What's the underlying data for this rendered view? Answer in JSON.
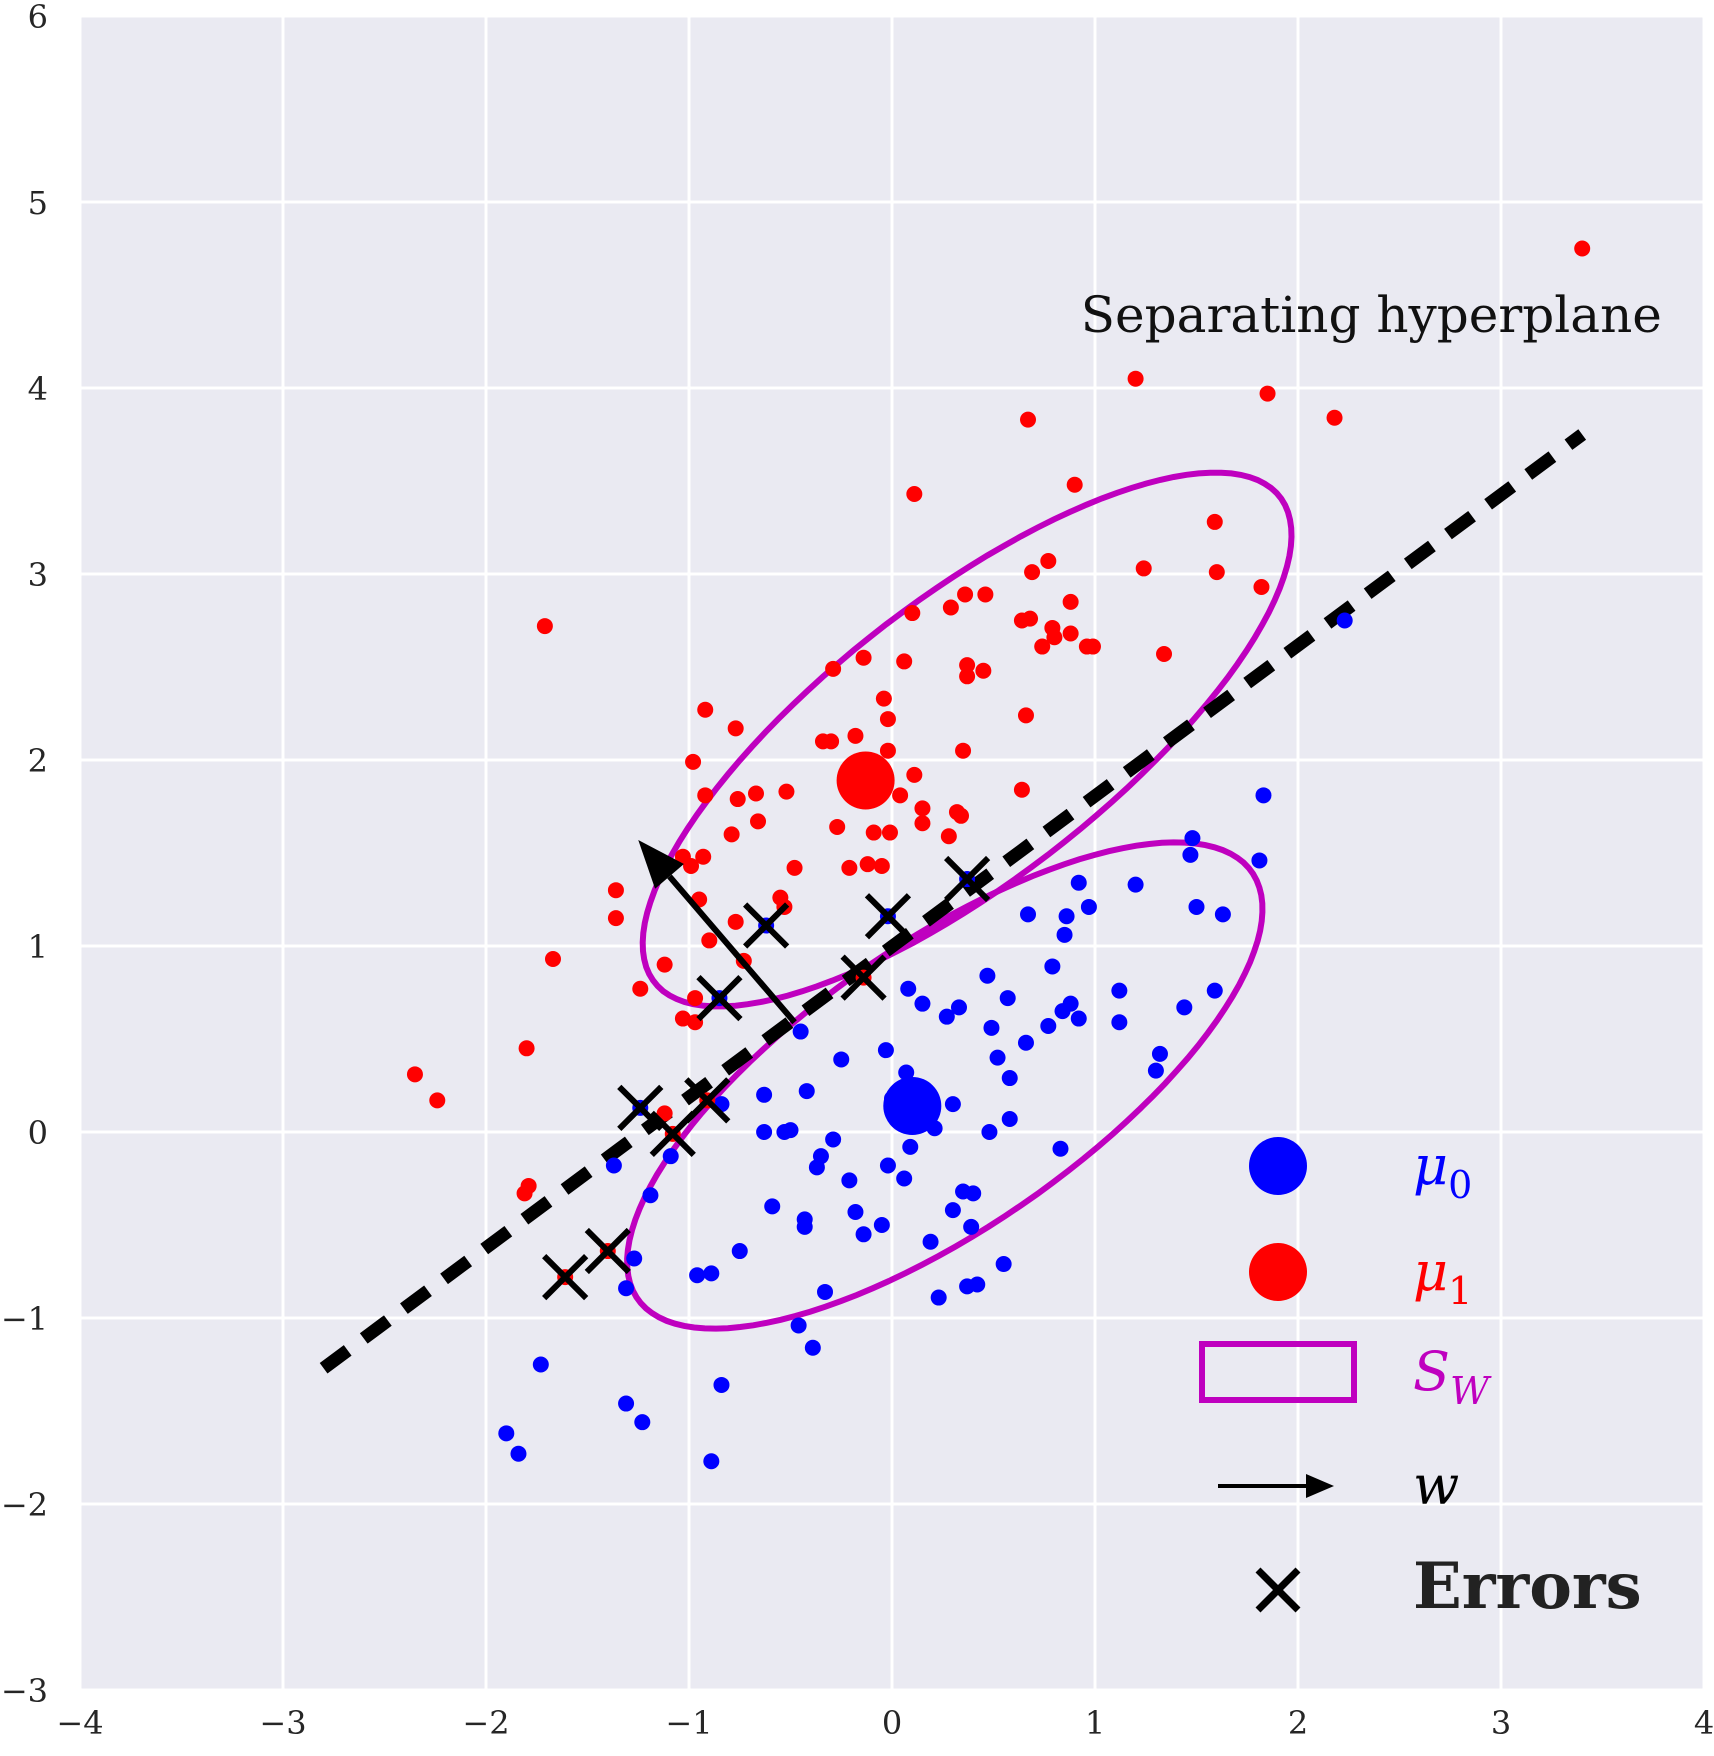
{
  "chart_data": {
    "type": "scatter",
    "title": "",
    "xlabel": "",
    "ylabel": "",
    "xlim": [
      -4,
      4
    ],
    "ylim": [
      -3,
      6
    ],
    "grid": true,
    "xticks": [
      -4,
      -3,
      -2,
      -1,
      0,
      1,
      2,
      3,
      4
    ],
    "yticks": [
      -3,
      -2,
      -1,
      0,
      1,
      2,
      3,
      4,
      5,
      6
    ],
    "xtick_labels": [
      "−4",
      "−3",
      "−2",
      "−1",
      "0",
      "1",
      "2",
      "3",
      "4"
    ],
    "ytick_labels": [
      "−3",
      "−2",
      "−1",
      "0",
      "1",
      "2",
      "3",
      "4",
      "5",
      "6"
    ],
    "colors": {
      "class0": "#0000ff",
      "class1": "#ff0000",
      "sw": "#bf00bf",
      "line": "#000000",
      "bg": "#eaeaf2"
    },
    "series": [
      {
        "name": "class 0",
        "color": "#0000ff",
        "points": [
          [
            2.23,
            2.75
          ],
          [
            1.83,
            1.81
          ],
          [
            1.48,
            1.58
          ],
          [
            1.47,
            1.49
          ],
          [
            1.81,
            1.46
          ],
          [
            1.2,
            1.33
          ],
          [
            0.92,
            1.34
          ],
          [
            0.97,
            1.21
          ],
          [
            1.5,
            1.21
          ],
          [
            1.63,
            1.17
          ],
          [
            0.67,
            1.17
          ],
          [
            0.86,
            1.16
          ],
          [
            0.85,
            1.06
          ],
          [
            0.79,
            0.89
          ],
          [
            0.47,
            0.84
          ],
          [
            1.12,
            0.76
          ],
          [
            1.59,
            0.76
          ],
          [
            0.08,
            0.77
          ],
          [
            0.57,
            0.72
          ],
          [
            0.88,
            0.69
          ],
          [
            0.15,
            0.69
          ],
          [
            0.33,
            0.67
          ],
          [
            0.27,
            0.62
          ],
          [
            0.92,
            0.61
          ],
          [
            0.84,
            0.65
          ],
          [
            1.12,
            0.59
          ],
          [
            0.49,
            0.56
          ],
          [
            0.77,
            0.57
          ],
          [
            1.44,
            0.67
          ],
          [
            0.66,
            0.48
          ],
          [
            -0.45,
            0.54
          ],
          [
            0.52,
            0.4
          ],
          [
            1.32,
            0.42
          ],
          [
            -0.03,
            0.44
          ],
          [
            0.58,
            0.29
          ],
          [
            1.3,
            0.33
          ],
          [
            -0.25,
            0.39
          ],
          [
            0.07,
            0.32
          ],
          [
            0.03,
            0.21
          ],
          [
            0.13,
            0.18
          ],
          [
            0.0,
            0.18
          ],
          [
            0.3,
            0.15
          ],
          [
            -0.42,
            0.22
          ],
          [
            -0.63,
            0.2
          ],
          [
            -0.84,
            0.15
          ],
          [
            0.58,
            0.07
          ],
          [
            -0.63,
            0.0
          ],
          [
            -0.53,
            0.0
          ],
          [
            -0.5,
            0.01
          ],
          [
            0.21,
            0.02
          ],
          [
            0.48,
            0.0
          ],
          [
            0.09,
            -0.08
          ],
          [
            0.83,
            -0.09
          ],
          [
            -0.29,
            -0.04
          ],
          [
            -1.09,
            -0.13
          ],
          [
            -0.35,
            -0.13
          ],
          [
            -1.37,
            -0.18
          ],
          [
            -0.02,
            -0.18
          ],
          [
            -0.37,
            -0.19
          ],
          [
            0.06,
            -0.25
          ],
          [
            -0.21,
            -0.26
          ],
          [
            0.35,
            -0.32
          ],
          [
            0.4,
            -0.33
          ],
          [
            -1.19,
            -0.34
          ],
          [
            -0.59,
            -0.4
          ],
          [
            -0.18,
            -0.43
          ],
          [
            0.3,
            -0.42
          ],
          [
            -0.43,
            -0.47
          ],
          [
            -0.43,
            -0.51
          ],
          [
            -0.05,
            -0.5
          ],
          [
            0.39,
            -0.51
          ],
          [
            -0.14,
            -0.55
          ],
          [
            0.19,
            -0.59
          ],
          [
            -0.75,
            -0.64
          ],
          [
            -1.27,
            -0.68
          ],
          [
            -0.96,
            -0.77
          ],
          [
            -0.89,
            -0.76
          ],
          [
            0.55,
            -0.71
          ],
          [
            -1.31,
            -0.84
          ],
          [
            0.42,
            -0.82
          ],
          [
            0.37,
            -0.83
          ],
          [
            -0.33,
            -0.86
          ],
          [
            0.23,
            -0.89
          ],
          [
            -0.46,
            -1.04
          ],
          [
            -0.39,
            -1.16
          ],
          [
            -1.73,
            -1.25
          ],
          [
            -0.84,
            -1.36
          ],
          [
            -1.31,
            -1.46
          ],
          [
            -1.23,
            -1.56
          ],
          [
            -1.9,
            -1.62
          ],
          [
            -1.84,
            -1.73
          ],
          [
            -0.89,
            -1.77
          ],
          [
            -1.24,
            0.13
          ],
          [
            -0.85,
            0.72
          ],
          [
            -0.62,
            1.11
          ],
          [
            -0.02,
            1.16
          ],
          [
            0.37,
            1.36
          ]
        ]
      },
      {
        "name": "class 1",
        "color": "#ff0000",
        "points": [
          [
            3.4,
            4.75
          ],
          [
            1.2,
            4.05
          ],
          [
            1.85,
            3.97
          ],
          [
            2.18,
            3.84
          ],
          [
            0.67,
            3.83
          ],
          [
            0.9,
            3.48
          ],
          [
            0.11,
            3.43
          ],
          [
            1.59,
            3.28
          ],
          [
            0.77,
            3.07
          ],
          [
            1.24,
            3.03
          ],
          [
            1.6,
            3.01
          ],
          [
            0.69,
            3.01
          ],
          [
            1.82,
            2.93
          ],
          [
            0.36,
            2.89
          ],
          [
            0.46,
            2.89
          ],
          [
            0.29,
            2.82
          ],
          [
            0.88,
            2.85
          ],
          [
            0.1,
            2.79
          ],
          [
            0.64,
            2.75
          ],
          [
            0.68,
            2.76
          ],
          [
            -1.71,
            2.72
          ],
          [
            0.79,
            2.71
          ],
          [
            0.88,
            2.68
          ],
          [
            0.8,
            2.66
          ],
          [
            0.74,
            2.61
          ],
          [
            0.96,
            2.61
          ],
          [
            0.99,
            2.61
          ],
          [
            1.34,
            2.57
          ],
          [
            -0.14,
            2.55
          ],
          [
            0.06,
            2.53
          ],
          [
            0.37,
            2.51
          ],
          [
            0.45,
            2.48
          ],
          [
            -0.29,
            2.49
          ],
          [
            0.37,
            2.45
          ],
          [
            -0.04,
            2.33
          ],
          [
            -0.92,
            2.27
          ],
          [
            0.66,
            2.24
          ],
          [
            -0.02,
            2.22
          ],
          [
            -0.77,
            2.17
          ],
          [
            -0.18,
            2.13
          ],
          [
            -0.34,
            2.1
          ],
          [
            -0.3,
            2.1
          ],
          [
            0.35,
            2.05
          ],
          [
            -0.02,
            2.05
          ],
          [
            -0.98,
            1.99
          ],
          [
            0.11,
            1.92
          ],
          [
            -0.92,
            1.81
          ],
          [
            -0.76,
            1.79
          ],
          [
            -0.67,
            1.82
          ],
          [
            -0.52,
            1.83
          ],
          [
            0.64,
            1.84
          ],
          [
            0.04,
            1.81
          ],
          [
            0.15,
            1.74
          ],
          [
            0.32,
            1.72
          ],
          [
            0.34,
            1.7
          ],
          [
            0.15,
            1.66
          ],
          [
            -0.66,
            1.67
          ],
          [
            -0.27,
            1.64
          ],
          [
            -0.09,
            1.61
          ],
          [
            -0.01,
            1.61
          ],
          [
            -0.79,
            1.6
          ],
          [
            0.28,
            1.59
          ],
          [
            -0.93,
            1.48
          ],
          [
            -1.03,
            1.48
          ],
          [
            -0.48,
            1.42
          ],
          [
            -0.21,
            1.42
          ],
          [
            -0.12,
            1.44
          ],
          [
            -0.05,
            1.43
          ],
          [
            -0.99,
            1.43
          ],
          [
            -1.36,
            1.3
          ],
          [
            -0.95,
            1.25
          ],
          [
            -0.55,
            1.26
          ],
          [
            -0.53,
            1.21
          ],
          [
            -0.77,
            1.13
          ],
          [
            -1.36,
            1.15
          ],
          [
            -0.9,
            1.03
          ],
          [
            -0.73,
            0.92
          ],
          [
            -1.12,
            0.9
          ],
          [
            -1.67,
            0.93
          ],
          [
            -1.24,
            0.77
          ],
          [
            -0.97,
            0.72
          ],
          [
            -1.03,
            0.61
          ],
          [
            -0.97,
            0.59
          ],
          [
            -1.8,
            0.45
          ],
          [
            -2.35,
            0.31
          ],
          [
            -2.24,
            0.17
          ],
          [
            -1.12,
            0.1
          ],
          [
            -0.91,
            0.17
          ],
          [
            -1.08,
            -0.01
          ],
          [
            -1.79,
            -0.29
          ],
          [
            -1.81,
            -0.33
          ],
          [
            -1.4,
            -0.64
          ],
          [
            -1.61,
            -0.78
          ],
          [
            -0.14,
            0.83
          ]
        ]
      }
    ],
    "means": [
      {
        "name": "μ0",
        "x": 0.1,
        "y": 0.14,
        "color": "#0000ff"
      },
      {
        "name": "μ1",
        "x": -0.13,
        "y": 1.89,
        "color": "#ff0000"
      }
    ],
    "errors": [
      [
        -1.24,
        0.13
      ],
      [
        -0.85,
        0.72
      ],
      [
        -0.62,
        1.11
      ],
      [
        -0.02,
        1.16
      ],
      [
        0.37,
        1.36
      ],
      [
        -0.91,
        0.17
      ],
      [
        -1.08,
        -0.01
      ],
      [
        -1.4,
        -0.64
      ],
      [
        -1.61,
        -0.78
      ],
      [
        -0.14,
        0.83
      ]
    ],
    "sw_ellipses": [
      {
        "center": [
          0.37,
          2.11
        ],
        "a": 2.02,
        "b": 0.73,
        "angle_deg": 41,
        "color": "#bf00bf"
      },
      {
        "center": [
          0.26,
          0.25
        ],
        "a": 1.9,
        "b": 0.74,
        "angle_deg": 38,
        "color": "#bf00bf"
      }
    ],
    "separating_line": {
      "from": [
        -2.8,
        -1.27
      ],
      "to": [
        3.4,
        3.75
      ],
      "style": "dashed",
      "color": "#000000"
    },
    "w_arrow": {
      "from": [
        -0.48,
        0.59
      ],
      "to": [
        -1.25,
        1.57
      ],
      "color": "#000000"
    },
    "annotations": [
      {
        "text": "Separating hyperplane",
        "x": 0.93,
        "y": 4.3
      }
    ],
    "legend": {
      "placement": "lower-right",
      "entries": [
        {
          "symbol": "dot",
          "color": "#0000ff",
          "label_main": "μ",
          "label_sub": "0"
        },
        {
          "symbol": "dot",
          "color": "#ff0000",
          "label_main": "μ",
          "label_sub": "1"
        },
        {
          "symbol": "rect",
          "color": "#bf00bf",
          "label_main": "S",
          "label_sub": "W"
        },
        {
          "symbol": "arrow",
          "color": "#000000",
          "label_main": "w",
          "label_sub": ""
        },
        {
          "symbol": "cross",
          "color": "#000000",
          "label_main": "Errors",
          "label_sub": ""
        }
      ]
    }
  }
}
